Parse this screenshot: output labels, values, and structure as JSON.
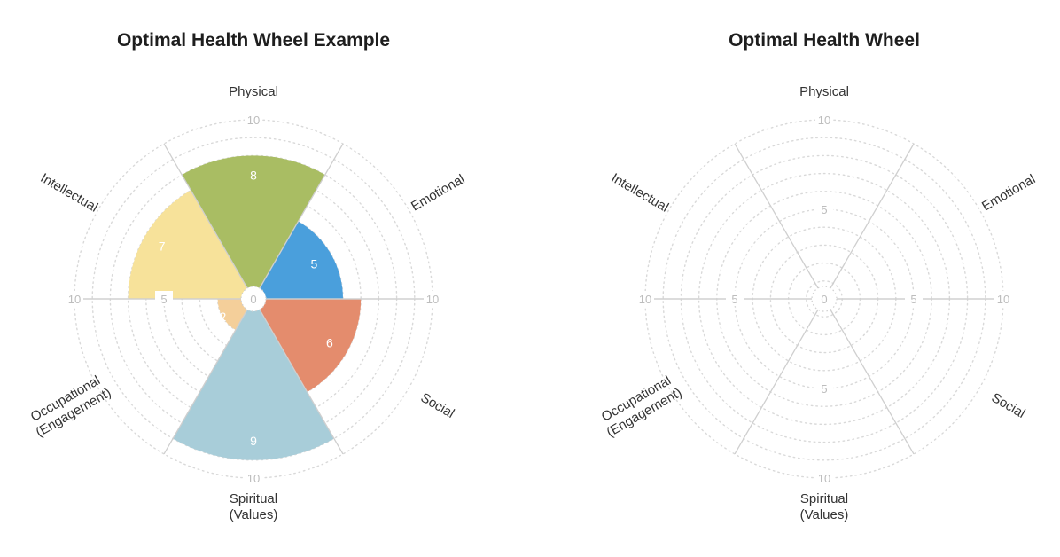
{
  "chart_data": [
    {
      "type": "polar-area",
      "title": "Optimal Health Wheel Example",
      "scale_max": 10,
      "categories": [
        {
          "lines": [
            "Physical"
          ],
          "value": 8,
          "color": "#a9bd63"
        },
        {
          "lines": [
            "Emotional"
          ],
          "value": 5,
          "color": "#4a9fdc"
        },
        {
          "lines": [
            "Social"
          ],
          "value": 6,
          "color": "#e48c6d"
        },
        {
          "lines": [
            "Spiritual",
            "(Values)"
          ],
          "value": 9,
          "color": "#a8cdd9"
        },
        {
          "lines": [
            "Occupational",
            "(Engagement)"
          ],
          "value": 2,
          "color": "#f4cf9a"
        },
        {
          "lines": [
            "Intellectual"
          ],
          "value": 7,
          "color": "#f7e29a"
        }
      ],
      "tick_labels": [
        {
          "axis": "top",
          "text": "10"
        },
        {
          "axis": "bottom",
          "text": "10"
        },
        {
          "axis": "left",
          "text": "10"
        },
        {
          "axis": "right",
          "text": "10"
        },
        {
          "axis": "left-inner",
          "text": "5"
        },
        {
          "axis": "center",
          "text": "0"
        }
      ]
    },
    {
      "type": "polar-area",
      "title": "Optimal Health Wheel",
      "scale_max": 10,
      "categories": [
        {
          "lines": [
            "Physical"
          ]
        },
        {
          "lines": [
            "Emotional"
          ]
        },
        {
          "lines": [
            "Social"
          ]
        },
        {
          "lines": [
            "Spiritual",
            "(Values)"
          ]
        },
        {
          "lines": [
            "Occupational",
            "(Engagement)"
          ]
        },
        {
          "lines": [
            "Intellectual"
          ]
        }
      ],
      "tick_labels": [
        {
          "axis": "top",
          "text": "10"
        },
        {
          "axis": "top-inner",
          "text": "5"
        },
        {
          "axis": "bottom",
          "text": "10"
        },
        {
          "axis": "bottom-inner",
          "text": "5"
        },
        {
          "axis": "left",
          "text": "10"
        },
        {
          "axis": "left-inner",
          "text": "5"
        },
        {
          "axis": "right",
          "text": "10"
        },
        {
          "axis": "right-inner",
          "text": "5"
        },
        {
          "axis": "center",
          "text": "0"
        }
      ]
    }
  ]
}
